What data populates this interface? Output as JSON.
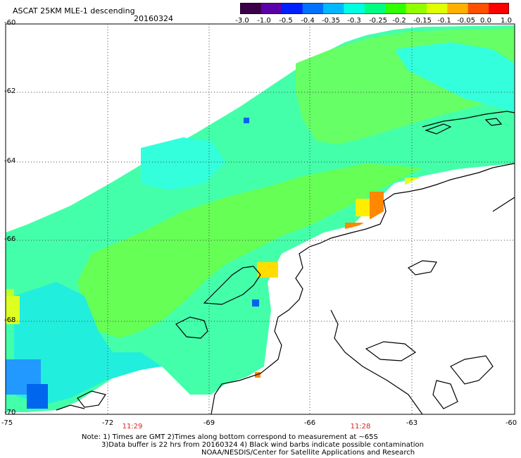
{
  "header": {
    "title": "ASCAT 25KM MLE-1 descending",
    "date": "20160324"
  },
  "colorbar": {
    "labels": [
      "-3.0",
      "-1.0",
      "-0.5",
      "-0.4",
      "-0.35",
      "-0.3",
      "-0.25",
      "-0.2",
      "-0.15",
      "-0.1",
      "-0.05",
      "0.0",
      "1.0"
    ],
    "colors": [
      "#3a0048",
      "#5a00a8",
      "#0020ff",
      "#0070ff",
      "#00b8ff",
      "#00ffe0",
      "#00ff80",
      "#30ff00",
      "#90ff00",
      "#e0ff00",
      "#ffb000",
      "#ff5000",
      "#ff0000"
    ]
  },
  "axes": {
    "lat_labels": [
      "-60",
      "-62",
      "-64",
      "-66",
      "-68",
      "-70"
    ],
    "lon_labels": [
      "-75",
      "-72",
      "-69",
      "-66",
      "-63",
      "-60"
    ]
  },
  "time_labels": [
    "11:29",
    "11:28"
  ],
  "notes": {
    "line1": "Note: 1) Times are GMT 2)Times along bottom correspond to measurement at ~65S",
    "line2": "3)Data buffer is 22 hrs from 20160324 4) Black wind barbs indicate possible contamination",
    "line3": "NOAA/NESDIS/Center for Satellite Applications and Research"
  },
  "map_colors": {
    "cyan": "#33ffdd",
    "green": "#55ff55",
    "lime": "#99ff33",
    "yellow": "#ffff22",
    "orange": "#ff8800",
    "blue": "#0088ff",
    "deepblue": "#0066ee"
  }
}
